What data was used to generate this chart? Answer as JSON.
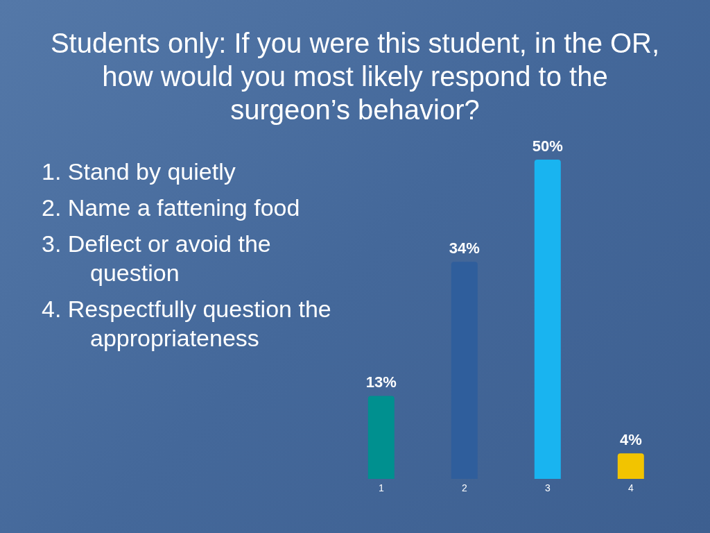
{
  "chart_data": {
    "type": "bar",
    "title": "Students only:  If you were this student, in the OR, how would you most likely respond to the surgeon’s behavior?",
    "annotations": [
      "1. Stand by quietly",
      "2. Name a fattening food",
      "3. Deflect or avoid the question",
      "4. Respectfully question the appropriateness"
    ],
    "categories": [
      "1",
      "2",
      "3",
      "4"
    ],
    "values": [
      13,
      34,
      50,
      4
    ],
    "colors": [
      "#00908f",
      "#2f5e9c",
      "#19b4f0",
      "#f2c400"
    ],
    "value_labels": [
      "13%",
      "34%",
      "50%",
      "4%"
    ]
  }
}
